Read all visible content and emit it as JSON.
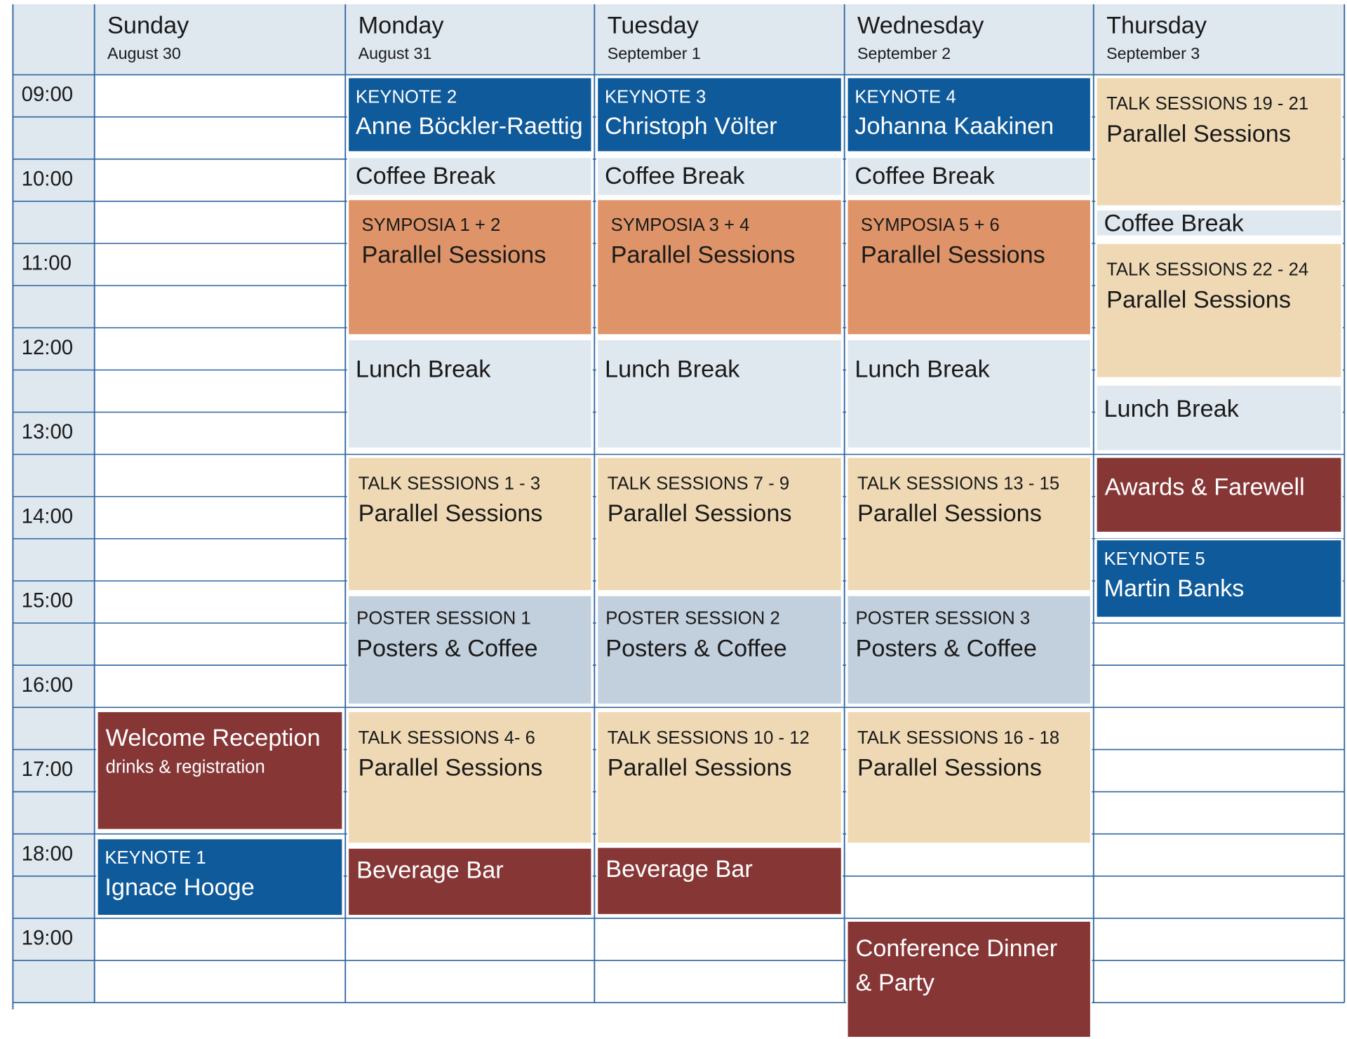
{
  "times": [
    "09:00",
    "10:00",
    "11:00",
    "12:00",
    "13:00",
    "14:00",
    "15:00",
    "16:00",
    "17:00",
    "18:00",
    "19:00"
  ],
  "days": [
    {
      "name": "Sunday",
      "date": "August 30",
      "events": [
        {
          "title": "Welcome Reception",
          "subtitle": "drinks & registration"
        },
        {
          "label": "KEYNOTE 1",
          "title": "Ignace Hooge"
        }
      ]
    },
    {
      "name": "Monday",
      "date": "August 31",
      "events": [
        {
          "label": "KEYNOTE 2",
          "title": "Anne Böckler-Raettig"
        },
        {
          "title": "Coffee Break"
        },
        {
          "label": "SYMPOSIA 1 + 2",
          "title": "Parallel Sessions"
        },
        {
          "title": "Lunch Break"
        },
        {
          "label": "TALK SESSIONS 1 - 3",
          "title": "Parallel Sessions"
        },
        {
          "label": "POSTER SESSION 1",
          "title": "Posters & Coffee"
        },
        {
          "label": "TALK SESSIONS 4- 6",
          "title": "Parallel Sessions"
        },
        {
          "title": "Beverage Bar"
        }
      ]
    },
    {
      "name": "Tuesday",
      "date": "September 1",
      "events": [
        {
          "label": "KEYNOTE 3",
          "title": "Christoph Völter"
        },
        {
          "title": "Coffee Break"
        },
        {
          "label": "SYMPOSIA 3 + 4",
          "title": "Parallel Sessions"
        },
        {
          "title": "Lunch Break"
        },
        {
          "label": "TALK SESSIONS 7 - 9",
          "title": "Parallel Sessions"
        },
        {
          "label": "POSTER SESSION 2",
          "title": "Posters & Coffee"
        },
        {
          "label": "TALK SESSIONS 10 - 12",
          "title": "Parallel Sessions"
        },
        {
          "title": "Beverage Bar"
        }
      ]
    },
    {
      "name": "Wednesday",
      "date": "September 2",
      "events": [
        {
          "label": "KEYNOTE 4",
          "title": "Johanna Kaakinen"
        },
        {
          "title": "Coffee Break"
        },
        {
          "label": "SYMPOSIA 5 + 6",
          "title": "Parallel Sessions"
        },
        {
          "title": "Lunch Break"
        },
        {
          "label": "TALK SESSIONS 13 - 15",
          "title": "Parallel Sessions"
        },
        {
          "label": "POSTER SESSION 3",
          "title": "Posters & Coffee"
        },
        {
          "label": "TALK SESSIONS 16 - 18",
          "title": "Parallel Sessions"
        },
        {
          "title": "Conference Dinner",
          "subtitle": "& Party"
        }
      ]
    },
    {
      "name": "Thursday",
      "date": "September 3",
      "events": [
        {
          "label": "TALK SESSIONS 19 - 21",
          "title": "Parallel Sessions"
        },
        {
          "title": "Coffee Break"
        },
        {
          "label": "TALK SESSIONS 22 - 24",
          "title": "Parallel Sessions"
        },
        {
          "title": "Lunch Break"
        },
        {
          "title": "Awards & Farewell"
        },
        {
          "label": "KEYNOTE 5",
          "title": "Martin Banks"
        }
      ]
    }
  ]
}
